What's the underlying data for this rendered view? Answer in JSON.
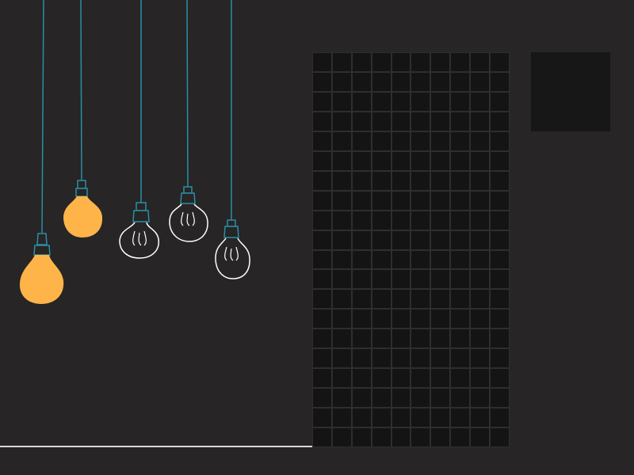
{
  "scene": {
    "background_color": "#272525",
    "wire_color": "#2a8fa6",
    "lit_bulb_color": "#ffb44a",
    "unlit_bulb_outline": "#ffffff"
  },
  "bulbs": [
    {
      "name": "bulb-1",
      "lit": true
    },
    {
      "name": "bulb-2",
      "lit": true
    },
    {
      "name": "bulb-3",
      "lit": false
    },
    {
      "name": "bulb-4",
      "lit": false
    },
    {
      "name": "bulb-5",
      "lit": false
    }
  ],
  "board": {
    "columns": 10,
    "rows": 20,
    "background_color": "#151414",
    "cell_border_color": "#2f2d2d"
  },
  "next_piece_box": {
    "background_color": "#181717"
  }
}
